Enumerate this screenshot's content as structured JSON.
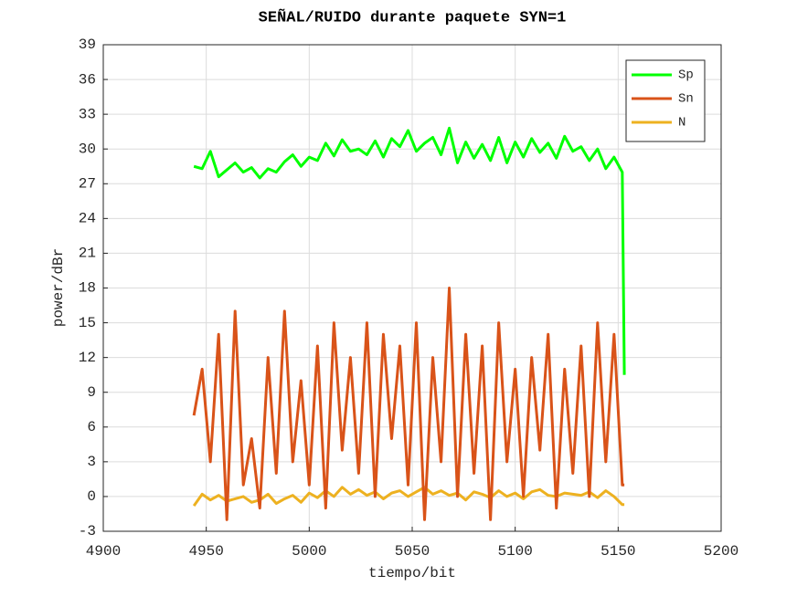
{
  "chart_data": {
    "type": "line",
    "title": "SEÑAL/RUIDO durante paquete SYN=1",
    "xlabel": "tiempo/bit",
    "ylabel": "power/dBr",
    "x": [
      4944,
      4948,
      4952,
      4956,
      4960,
      4964,
      4968,
      4972,
      4976,
      4980,
      4984,
      4988,
      4992,
      4996,
      5000,
      5004,
      5008,
      5012,
      5016,
      5020,
      5024,
      5028,
      5032,
      5036,
      5040,
      5044,
      5048,
      5052,
      5056,
      5060,
      5064,
      5068,
      5072,
      5076,
      5080,
      5084,
      5088,
      5092,
      5096,
      5100,
      5104,
      5108,
      5112,
      5116,
      5120,
      5124,
      5128,
      5132,
      5136,
      5140,
      5144,
      5148,
      5152,
      5153
    ],
    "series": [
      {
        "name": "Sp",
        "color": "#00ff00",
        "values": [
          28.5,
          28.3,
          29.8,
          27.6,
          28.2,
          28.8,
          28.0,
          28.4,
          27.5,
          28.3,
          28.0,
          28.9,
          29.5,
          28.5,
          29.3,
          29.0,
          30.5,
          29.4,
          30.8,
          29.8,
          30.0,
          29.5,
          30.7,
          29.3,
          30.9,
          30.2,
          31.6,
          29.8,
          30.5,
          31.0,
          29.5,
          31.8,
          28.8,
          30.6,
          29.2,
          30.4,
          29.0,
          31.0,
          28.8,
          30.6,
          29.3,
          30.9,
          29.7,
          30.5,
          29.2,
          31.1,
          29.8,
          30.2,
          29.0,
          30.0,
          28.3,
          29.3,
          28.0,
          10.5
        ]
      },
      {
        "name": "Sn",
        "color": "#d95319",
        "values": [
          7,
          11,
          3,
          14,
          -2,
          16,
          1,
          5,
          -1,
          12,
          2,
          16,
          3,
          10,
          1,
          13,
          -1,
          15,
          4,
          12,
          2,
          15,
          0,
          14,
          5,
          13,
          1,
          15,
          -2,
          12,
          3,
          18,
          0,
          14,
          2,
          13,
          -2,
          15,
          3,
          11,
          0,
          12,
          4,
          14,
          -1,
          11,
          2,
          13,
          0,
          15,
          3,
          14,
          1,
          1
        ]
      },
      {
        "name": "N",
        "color": "#edb120",
        "values": [
          -0.8,
          0.2,
          -0.3,
          0.1,
          -0.4,
          -0.2,
          0.0,
          -0.5,
          -0.3,
          0.2,
          -0.6,
          -0.2,
          0.1,
          -0.5,
          0.3,
          -0.1,
          0.5,
          0.0,
          0.8,
          0.2,
          0.6,
          0.1,
          0.4,
          -0.2,
          0.3,
          0.5,
          0.0,
          0.4,
          0.8,
          0.2,
          0.5,
          0.1,
          0.3,
          -0.3,
          0.4,
          0.2,
          -0.1,
          0.5,
          0.0,
          0.3,
          -0.2,
          0.4,
          0.6,
          0.1,
          0.0,
          0.3,
          0.2,
          0.1,
          0.4,
          -0.1,
          0.5,
          0.0,
          -0.7,
          -0.7
        ]
      }
    ],
    "xlim": [
      4900,
      5200
    ],
    "xticks": [
      4900,
      4950,
      5000,
      5050,
      5100,
      5150,
      5200
    ],
    "ylim": [
      -3,
      39
    ],
    "yticks": [
      -3,
      0,
      3,
      6,
      9,
      12,
      15,
      18,
      21,
      24,
      27,
      30,
      33,
      36,
      39
    ],
    "grid": true,
    "legend": "upper right"
  }
}
